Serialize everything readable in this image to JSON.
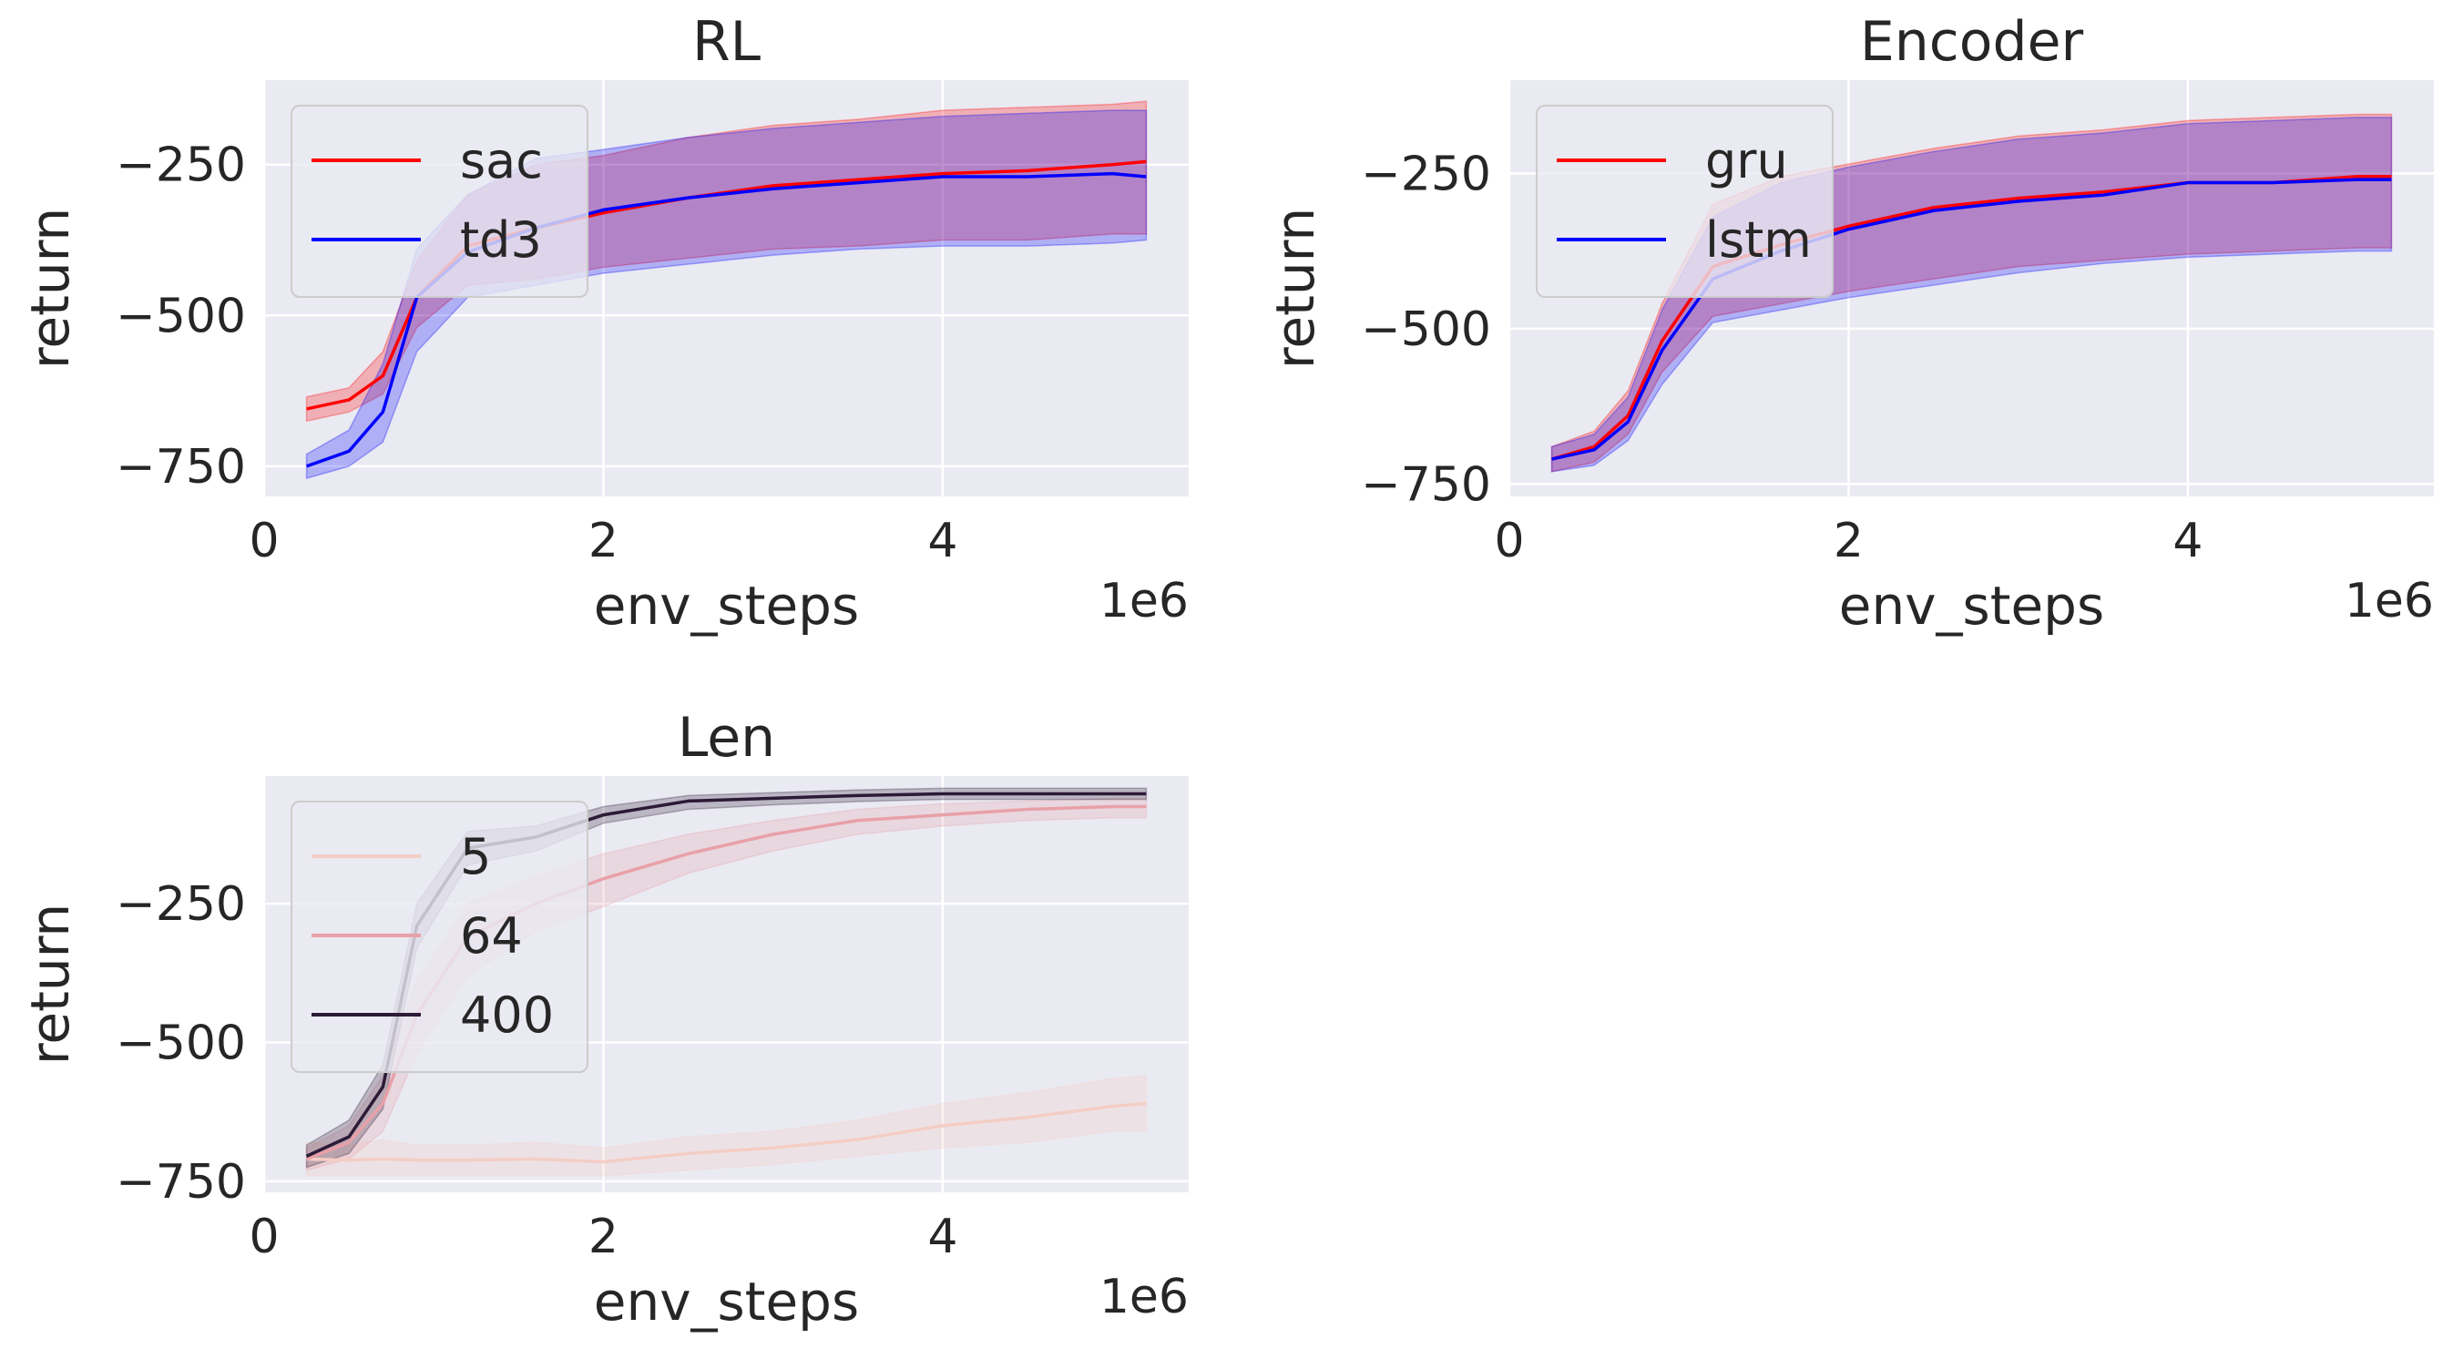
{
  "chart_data": [
    {
      "type": "line",
      "title": "RL",
      "xlabel": "env_steps",
      "ylabel": "return",
      "x_offset_text": "1e6",
      "xlim": [
        0,
        5.45
      ],
      "ylim": [
        -800,
        -110
      ],
      "xticks": [
        0,
        2,
        4
      ],
      "xtick_labels": [
        "0",
        "2",
        "4"
      ],
      "yticks": [
        -750,
        -500,
        -250
      ],
      "ytick_labels": [
        "−750",
        "−500",
        "−250"
      ],
      "grid": true,
      "legend": "upper-left",
      "x": [
        0.25,
        0.5,
        0.7,
        0.9,
        1.2,
        1.6,
        2.0,
        2.5,
        3.0,
        3.5,
        4.0,
        4.5,
        5.0,
        5.2
      ],
      "series": [
        {
          "name": "sac",
          "color": "#ff0000",
          "values": [
            -655,
            -640,
            -600,
            -470,
            -385,
            -355,
            -330,
            -305,
            -285,
            -275,
            -265,
            -260,
            -250,
            -245
          ],
          "lower": [
            -675,
            -660,
            -630,
            -520,
            -450,
            -440,
            -420,
            -405,
            -390,
            -385,
            -375,
            -375,
            -365,
            -365
          ],
          "upper": [
            -635,
            -620,
            -560,
            -410,
            -300,
            -250,
            -235,
            -205,
            -185,
            -175,
            -160,
            -155,
            -150,
            -145
          ]
        },
        {
          "name": "td3",
          "color": "#0000ff",
          "values": [
            -750,
            -725,
            -660,
            -470,
            -395,
            -355,
            -325,
            -305,
            -290,
            -280,
            -270,
            -270,
            -265,
            -270
          ],
          "lower": [
            -770,
            -750,
            -710,
            -560,
            -470,
            -450,
            -430,
            -415,
            -400,
            -390,
            -385,
            -385,
            -380,
            -375
          ],
          "upper": [
            -730,
            -690,
            -580,
            -390,
            -300,
            -240,
            -225,
            -205,
            -190,
            -180,
            -170,
            -165,
            -160,
            -160
          ]
        }
      ]
    },
    {
      "type": "line",
      "title": "Encoder",
      "xlabel": "env_steps",
      "ylabel": "return",
      "x_offset_text": "1e6",
      "xlim": [
        0,
        5.45
      ],
      "ylim": [
        -770,
        -100
      ],
      "xticks": [
        0,
        2,
        4
      ],
      "xtick_labels": [
        "0",
        "2",
        "4"
      ],
      "yticks": [
        -750,
        -500,
        -250
      ],
      "ytick_labels": [
        "−750",
        "−500",
        "−250"
      ],
      "grid": true,
      "legend": "upper-left",
      "x": [
        0.25,
        0.5,
        0.7,
        0.9,
        1.2,
        1.6,
        2.0,
        2.5,
        3.0,
        3.5,
        4.0,
        4.5,
        5.0,
        5.2
      ],
      "series": [
        {
          "name": "gru",
          "color": "#ff0000",
          "values": [
            -710,
            -690,
            -640,
            -520,
            -400,
            -365,
            -335,
            -305,
            -290,
            -280,
            -265,
            -265,
            -255,
            -255
          ],
          "lower": [
            -730,
            -715,
            -670,
            -570,
            -480,
            -460,
            -440,
            -420,
            -400,
            -390,
            -380,
            -375,
            -370,
            -370
          ],
          "upper": [
            -690,
            -665,
            -600,
            -460,
            -300,
            -255,
            -235,
            -210,
            -190,
            -180,
            -165,
            -160,
            -155,
            -155
          ]
        },
        {
          "name": "lstm",
          "color": "#0000ff",
          "values": [
            -710,
            -695,
            -650,
            -535,
            -420,
            -375,
            -340,
            -310,
            -295,
            -285,
            -265,
            -265,
            -260,
            -260
          ],
          "lower": [
            -730,
            -720,
            -680,
            -590,
            -490,
            -470,
            -450,
            -430,
            -410,
            -395,
            -385,
            -380,
            -375,
            -375
          ],
          "upper": [
            -690,
            -670,
            -610,
            -470,
            -320,
            -265,
            -240,
            -215,
            -195,
            -185,
            -170,
            -165,
            -160,
            -160
          ]
        }
      ]
    },
    {
      "type": "line",
      "title": "Len",
      "xlabel": "env_steps",
      "ylabel": "return",
      "x_offset_text": "1e6",
      "xlim": [
        0,
        5.45
      ],
      "ylim": [
        -770,
        -20
      ],
      "xticks": [
        0,
        2,
        4
      ],
      "xtick_labels": [
        "0",
        "2",
        "4"
      ],
      "yticks": [
        -750,
        -500,
        -250
      ],
      "ytick_labels": [
        "−750",
        "−500",
        "−250"
      ],
      "grid": true,
      "legend": "upper-left",
      "x": [
        0.25,
        0.5,
        0.7,
        0.9,
        1.2,
        1.6,
        2.0,
        2.5,
        3.0,
        3.5,
        4.0,
        4.5,
        5.0,
        5.2
      ],
      "series": [
        {
          "name": "5",
          "color": "#f4cdc4",
          "values": [
            -710,
            -712,
            -710,
            -712,
            -712,
            -710,
            -715,
            -700,
            -690,
            -675,
            -650,
            -635,
            -615,
            -610
          ],
          "lower": [
            -740,
            -740,
            -740,
            -740,
            -740,
            -740,
            -740,
            -730,
            -720,
            -705,
            -690,
            -680,
            -660,
            -660
          ],
          "upper": [
            -680,
            -685,
            -675,
            -685,
            -685,
            -680,
            -690,
            -670,
            -660,
            -640,
            -610,
            -590,
            -565,
            -560
          ]
        },
        {
          "name": "64",
          "color": "#e8a0a8",
          "values": [
            -710,
            -680,
            -610,
            -450,
            -310,
            -250,
            -205,
            -160,
            -125,
            -100,
            -90,
            -80,
            -75,
            -75
          ],
          "lower": [
            -730,
            -710,
            -660,
            -520,
            -380,
            -300,
            -255,
            -195,
            -155,
            -125,
            -110,
            -100,
            -95,
            -95
          ],
          "upper": [
            -690,
            -650,
            -560,
            -390,
            -250,
            -200,
            -160,
            -125,
            -100,
            -80,
            -70,
            -65,
            -60,
            -60
          ]
        },
        {
          "name": "400",
          "color": "#2c1a36",
          "values": [
            -705,
            -670,
            -580,
            -290,
            -150,
            -130,
            -90,
            -65,
            -60,
            -55,
            -52,
            -52,
            -52,
            -52
          ],
          "lower": [
            -725,
            -700,
            -620,
            -330,
            -180,
            -155,
            -105,
            -80,
            -72,
            -66,
            -62,
            -62,
            -62,
            -62
          ],
          "upper": [
            -685,
            -640,
            -540,
            -250,
            -120,
            -110,
            -75,
            -55,
            -50,
            -45,
            -42,
            -42,
            -42,
            -42
          ]
        }
      ]
    }
  ]
}
